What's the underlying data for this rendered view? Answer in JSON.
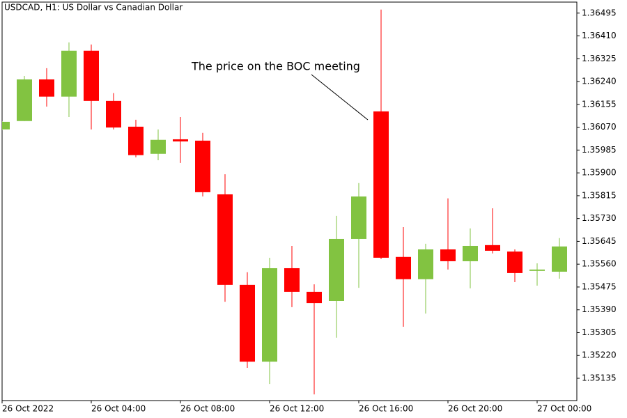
{
  "chart_data": {
    "type": "candlestick",
    "title": "USDCAD, H1:  US Dollar vs Canadian Dollar",
    "annotation": "The price on the BOC meeting",
    "categories": [
      "26 Oct 2022",
      null,
      null,
      null,
      "26 Oct 04:00",
      null,
      null,
      null,
      "26 Oct 08:00",
      null,
      null,
      null,
      "26 Oct 12:00",
      null,
      null,
      null,
      "26 Oct 16:00",
      null,
      null,
      null,
      "26 Oct 20:00",
      null,
      null,
      null,
      "27 Oct 00:00",
      null
    ],
    "open": [
      1.36062,
      1.36093,
      1.36248,
      1.36184,
      1.36355,
      1.36168,
      1.36072,
      1.35971,
      1.36025,
      1.3602,
      1.3582,
      1.35483,
      1.35197,
      1.35545,
      1.35457,
      1.35423,
      1.35654,
      1.36129,
      1.35587,
      1.35504,
      1.35615,
      1.35571,
      1.35631,
      1.35607,
      1.35535,
      1.35532
    ],
    "high": [
      1.36092,
      1.36261,
      1.3629,
      1.36386,
      1.36378,
      1.36197,
      1.36098,
      1.36062,
      1.36108,
      1.36049,
      1.35895,
      1.3553,
      1.35584,
      1.35628,
      1.35485,
      1.3574,
      1.35862,
      1.36508,
      1.35698,
      1.35636,
      1.35805,
      1.35693,
      1.35768,
      1.35615,
      1.35563,
      1.35657
    ],
    "low": [
      1.3606,
      1.36093,
      1.36147,
      1.36108,
      1.36062,
      1.36062,
      1.35958,
      1.35947,
      1.35937,
      1.35812,
      1.3542,
      1.35174,
      1.35114,
      1.354,
      1.35075,
      1.35286,
      1.35472,
      1.35579,
      1.35327,
      1.35376,
      1.3554,
      1.3547,
      1.356,
      1.35493,
      1.3548,
      1.35506
    ],
    "close": [
      1.3609,
      1.36248,
      1.36184,
      1.36355,
      1.36168,
      1.36069,
      1.35966,
      1.36023,
      1.36017,
      1.35828,
      1.35483,
      1.35197,
      1.35545,
      1.35457,
      1.35415,
      1.35654,
      1.35812,
      1.35584,
      1.35504,
      1.35615,
      1.35571,
      1.35628,
      1.3561,
      1.35527,
      1.3554,
      1.35626
    ],
    "up_color": "#82c341",
    "down_color": "#ff0000",
    "ylim": [
      1.35052,
      1.36536
    ],
    "yticks": [
      1.36495,
      {
        "value": 1.3641,
        "label": "1.36410"
      },
      1.36325,
      {
        "value": 1.3624,
        "label": "1.36240"
      },
      1.36155,
      {
        "value": 1.3607,
        "label": "1.36070"
      },
      1.35985,
      {
        "value": 1.359,
        "label": "1.35900"
      },
      1.35815,
      {
        "value": 1.3573,
        "label": "1.35730"
      },
      1.35645,
      {
        "value": 1.3556,
        "label": "1.35560"
      },
      1.35475,
      {
        "value": 1.3539,
        "label": "1.35390"
      },
      1.35305,
      {
        "value": 1.3522,
        "label": "1.35220"
      },
      1.35135
    ]
  }
}
